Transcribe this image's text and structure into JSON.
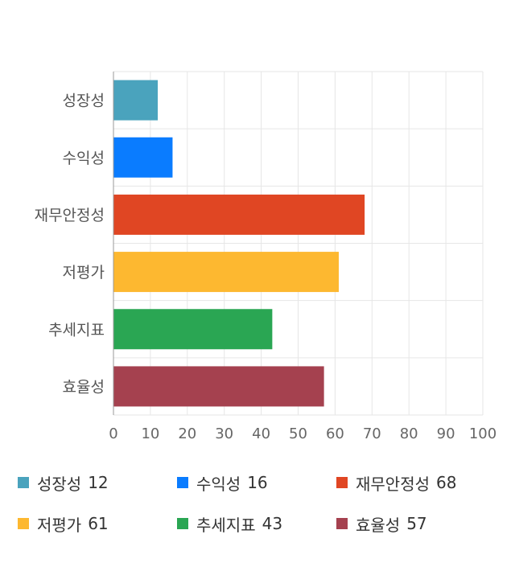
{
  "chart_data": {
    "type": "bar",
    "orientation": "horizontal",
    "categories": [
      "성장성",
      "수익성",
      "재무안정성",
      "저평가",
      "추세지표",
      "효율성"
    ],
    "values": [
      12,
      16,
      68,
      61,
      43,
      57
    ],
    "colors": [
      "#4aa3bd",
      "#0a7cff",
      "#e04623",
      "#fdb830",
      "#2aa653",
      "#a5414f"
    ],
    "xlim": [
      0,
      100
    ],
    "xticks": [
      "0",
      "10",
      "20",
      "30",
      "40",
      "50",
      "60",
      "70",
      "80",
      "90",
      "100"
    ],
    "grid": true,
    "legend_position": "bottom"
  },
  "legend": [
    {
      "label": "성장성",
      "value": "12"
    },
    {
      "label": "수익성",
      "value": "16"
    },
    {
      "label": "재무안정성",
      "value": "68"
    },
    {
      "label": "저평가",
      "value": "61"
    },
    {
      "label": "추세지표",
      "value": "43"
    },
    {
      "label": "효율성",
      "value": "57"
    }
  ]
}
